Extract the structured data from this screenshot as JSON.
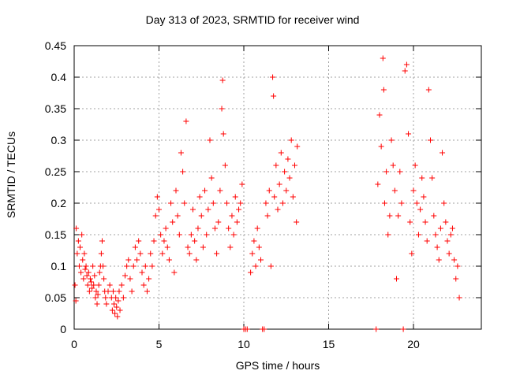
{
  "chart_data": {
    "type": "scatter",
    "title": "Day 313 of 2023, SRMTID for receiver wind",
    "xlabel": "GPS time / hours",
    "ylabel": "SRMTID / TECUs",
    "xlim": [
      0,
      24
    ],
    "ylim": [
      0,
      0.45
    ],
    "xticks": [
      0,
      5,
      10,
      15,
      20
    ],
    "xtick_labels": [
      "0",
      "5",
      "10",
      "15",
      "20"
    ],
    "yticks": [
      0,
      0.05,
      0.1,
      0.15,
      0.2,
      0.25,
      0.3,
      0.35,
      0.4,
      0.45
    ],
    "ytick_labels": [
      "0",
      "0.05",
      "0.1",
      "0.15",
      "0.2",
      "0.25",
      "0.3",
      "0.35",
      "0.4",
      "0.45"
    ],
    "grid": true,
    "marker": "+",
    "color": "#ff0000",
    "series": [
      {
        "name": "SRMTID",
        "points": [
          [
            0.05,
            0.07
          ],
          [
            0.1,
            0.045
          ],
          [
            0.12,
            0.16
          ],
          [
            0.18,
            0.12
          ],
          [
            0.25,
            0.14
          ],
          [
            0.3,
            0.1
          ],
          [
            0.35,
            0.13
          ],
          [
            0.4,
            0.09
          ],
          [
            0.45,
            0.15
          ],
          [
            0.5,
            0.11
          ],
          [
            0.55,
            0.08
          ],
          [
            0.6,
            0.12
          ],
          [
            0.65,
            0.095
          ],
          [
            0.7,
            0.1
          ],
          [
            0.75,
            0.085
          ],
          [
            0.8,
            0.07
          ],
          [
            0.85,
            0.09
          ],
          [
            0.9,
            0.06
          ],
          [
            0.95,
            0.08
          ],
          [
            1.0,
            0.075
          ],
          [
            1.05,
            0.065
          ],
          [
            1.1,
            0.1
          ],
          [
            1.15,
            0.07
          ],
          [
            1.2,
            0.085
          ],
          [
            1.25,
            0.05
          ],
          [
            1.3,
            0.06
          ],
          [
            1.35,
            0.04
          ],
          [
            1.4,
            0.055
          ],
          [
            1.45,
            0.07
          ],
          [
            1.5,
            0.09
          ],
          [
            1.55,
            0.1
          ],
          [
            1.6,
            0.12
          ],
          [
            1.65,
            0.14
          ],
          [
            1.7,
            0.1
          ],
          [
            1.75,
            0.08
          ],
          [
            1.8,
            0.06
          ],
          [
            1.85,
            0.05
          ],
          [
            1.9,
            0.04
          ],
          [
            2.0,
            0.06
          ],
          [
            2.1,
            0.07
          ],
          [
            2.2,
            0.05
          ],
          [
            2.25,
            0.03
          ],
          [
            2.3,
            0.06
          ],
          [
            2.35,
            0.04
          ],
          [
            2.4,
            0.025
          ],
          [
            2.45,
            0.05
          ],
          [
            2.5,
            0.035
          ],
          [
            2.55,
            0.02
          ],
          [
            2.6,
            0.045
          ],
          [
            2.65,
            0.06
          ],
          [
            2.7,
            0.03
          ],
          [
            2.8,
            0.07
          ],
          [
            2.9,
            0.05
          ],
          [
            3.0,
            0.085
          ],
          [
            3.1,
            0.1
          ],
          [
            3.2,
            0.11
          ],
          [
            3.3,
            0.08
          ],
          [
            3.4,
            0.06
          ],
          [
            3.5,
            0.1
          ],
          [
            3.6,
            0.13
          ],
          [
            3.7,
            0.11
          ],
          [
            3.8,
            0.14
          ],
          [
            3.9,
            0.12
          ],
          [
            4.0,
            0.09
          ],
          [
            4.1,
            0.07
          ],
          [
            4.2,
            0.1
          ],
          [
            4.3,
            0.06
          ],
          [
            4.4,
            0.08
          ],
          [
            4.5,
            0.12
          ],
          [
            4.6,
            0.1
          ],
          [
            4.7,
            0.14
          ],
          [
            4.8,
            0.18
          ],
          [
            4.9,
            0.21
          ],
          [
            5.0,
            0.19
          ],
          [
            5.1,
            0.15
          ],
          [
            5.2,
            0.12
          ],
          [
            5.3,
            0.14
          ],
          [
            5.4,
            0.16
          ],
          [
            5.5,
            0.13
          ],
          [
            5.6,
            0.11
          ],
          [
            5.7,
            0.2
          ],
          [
            5.8,
            0.17
          ],
          [
            5.9,
            0.09
          ],
          [
            6.0,
            0.22
          ],
          [
            6.1,
            0.18
          ],
          [
            6.2,
            0.15
          ],
          [
            6.3,
            0.28
          ],
          [
            6.4,
            0.25
          ],
          [
            6.5,
            0.2
          ],
          [
            6.6,
            0.33
          ],
          [
            6.7,
            0.13
          ],
          [
            6.8,
            0.12
          ],
          [
            6.9,
            0.15
          ],
          [
            7.0,
            0.19
          ],
          [
            7.1,
            0.14
          ],
          [
            7.2,
            0.11
          ],
          [
            7.3,
            0.16
          ],
          [
            7.4,
            0.21
          ],
          [
            7.5,
            0.18
          ],
          [
            7.6,
            0.13
          ],
          [
            7.7,
            0.22
          ],
          [
            7.8,
            0.15
          ],
          [
            7.9,
            0.19
          ],
          [
            8.0,
            0.3
          ],
          [
            8.1,
            0.24
          ],
          [
            8.2,
            0.2
          ],
          [
            8.3,
            0.16
          ],
          [
            8.4,
            0.12
          ],
          [
            8.5,
            0.17
          ],
          [
            8.6,
            0.22
          ],
          [
            8.7,
            0.35
          ],
          [
            8.75,
            0.395
          ],
          [
            8.8,
            0.31
          ],
          [
            8.9,
            0.26
          ],
          [
            9.0,
            0.2
          ],
          [
            9.1,
            0.16
          ],
          [
            9.2,
            0.13
          ],
          [
            9.3,
            0.18
          ],
          [
            9.4,
            0.15
          ],
          [
            9.5,
            0.21
          ],
          [
            9.6,
            0.17
          ],
          [
            9.7,
            0.19
          ],
          [
            9.8,
            0.2
          ],
          [
            9.9,
            0.23
          ],
          [
            10.0,
            0.0
          ],
          [
            10.1,
            0.0
          ],
          [
            10.2,
            0.0
          ],
          [
            10.4,
            0.09
          ],
          [
            10.5,
            0.12
          ],
          [
            10.6,
            0.14
          ],
          [
            10.7,
            0.1
          ],
          [
            10.8,
            0.16
          ],
          [
            10.9,
            0.13
          ],
          [
            11.0,
            0.11
          ],
          [
            11.1,
            0.0
          ],
          [
            11.2,
            0.0
          ],
          [
            11.3,
            0.2
          ],
          [
            11.4,
            0.18
          ],
          [
            11.5,
            0.22
          ],
          [
            11.6,
            0.1
          ],
          [
            11.7,
            0.4
          ],
          [
            11.75,
            0.37
          ],
          [
            11.8,
            0.21
          ],
          [
            11.9,
            0.26
          ],
          [
            12.0,
            0.19
          ],
          [
            12.1,
            0.23
          ],
          [
            12.2,
            0.28
          ],
          [
            12.3,
            0.2
          ],
          [
            12.4,
            0.25
          ],
          [
            12.5,
            0.22
          ],
          [
            12.6,
            0.27
          ],
          [
            12.7,
            0.24
          ],
          [
            12.8,
            0.3
          ],
          [
            12.9,
            0.21
          ],
          [
            13.0,
            0.26
          ],
          [
            13.1,
            0.17
          ],
          [
            13.15,
            0.29
          ],
          [
            17.8,
            0.0
          ],
          [
            17.9,
            0.23
          ],
          [
            18.0,
            0.34
          ],
          [
            18.1,
            0.29
          ],
          [
            18.2,
            0.43
          ],
          [
            18.25,
            0.38
          ],
          [
            18.3,
            0.2
          ],
          [
            18.4,
            0.25
          ],
          [
            18.5,
            0.15
          ],
          [
            18.6,
            0.18
          ],
          [
            18.7,
            0.3
          ],
          [
            18.8,
            0.26
          ],
          [
            18.9,
            0.22
          ],
          [
            19.0,
            0.08
          ],
          [
            19.1,
            0.18
          ],
          [
            19.2,
            0.25
          ],
          [
            19.3,
            0.2
          ],
          [
            19.4,
            0.0
          ],
          [
            19.5,
            0.41
          ],
          [
            19.6,
            0.42
          ],
          [
            19.7,
            0.31
          ],
          [
            19.8,
            0.17
          ],
          [
            19.9,
            0.12
          ],
          [
            20.0,
            0.22
          ],
          [
            20.1,
            0.26
          ],
          [
            20.2,
            0.2
          ],
          [
            20.3,
            0.15
          ],
          [
            20.4,
            0.19
          ],
          [
            20.5,
            0.24
          ],
          [
            20.6,
            0.21
          ],
          [
            20.7,
            0.17
          ],
          [
            20.8,
            0.14
          ],
          [
            20.9,
            0.38
          ],
          [
            21.0,
            0.3
          ],
          [
            21.1,
            0.24
          ],
          [
            21.2,
            0.18
          ],
          [
            21.3,
            0.15
          ],
          [
            21.4,
            0.13
          ],
          [
            21.5,
            0.11
          ],
          [
            21.6,
            0.16
          ],
          [
            21.7,
            0.28
          ],
          [
            21.8,
            0.2
          ],
          [
            21.9,
            0.17
          ],
          [
            22.0,
            0.14
          ],
          [
            22.1,
            0.12
          ],
          [
            22.2,
            0.15
          ],
          [
            22.3,
            0.16
          ],
          [
            22.4,
            0.11
          ],
          [
            22.5,
            0.08
          ],
          [
            22.6,
            0.1
          ],
          [
            22.7,
            0.05
          ]
        ]
      }
    ]
  }
}
